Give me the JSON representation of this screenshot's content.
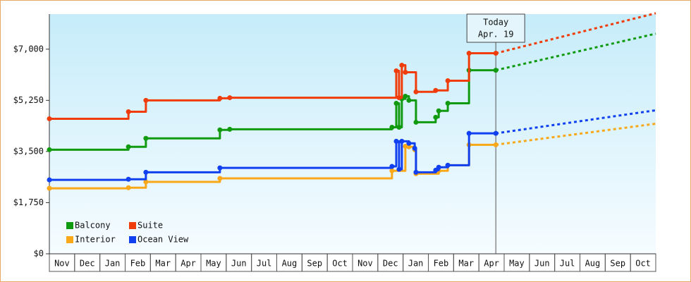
{
  "chart_data": {
    "type": "step-line",
    "xlim": [
      0,
      24
    ],
    "xticks": [
      {
        "value": 0.5,
        "label": "Nov"
      },
      {
        "value": 1.5,
        "label": "Dec"
      },
      {
        "value": 2.5,
        "label": "Jan"
      },
      {
        "value": 3.5,
        "label": "Feb"
      },
      {
        "value": 4.5,
        "label": "Mar"
      },
      {
        "value": 5.5,
        "label": "Apr"
      },
      {
        "value": 6.5,
        "label": "May"
      },
      {
        "value": 7.5,
        "label": "Jun"
      },
      {
        "value": 8.5,
        "label": "Jul"
      },
      {
        "value": 9.5,
        "label": "Aug"
      },
      {
        "value": 10.5,
        "label": "Sep"
      },
      {
        "value": 11.5,
        "label": "Oct"
      },
      {
        "value": 12.5,
        "label": "Nov"
      },
      {
        "value": 13.5,
        "label": "Dec"
      },
      {
        "value": 14.5,
        "label": "Jan"
      },
      {
        "value": 15.5,
        "label": "Feb"
      },
      {
        "value": 16.5,
        "label": "Mar"
      },
      {
        "value": 17.5,
        "label": "Apr"
      },
      {
        "value": 18.5,
        "label": "May"
      },
      {
        "value": 19.5,
        "label": "Jun"
      },
      {
        "value": 20.5,
        "label": "Jul"
      },
      {
        "value": 21.5,
        "label": "Aug"
      },
      {
        "value": 22.5,
        "label": "Sep"
      },
      {
        "value": 23.5,
        "label": "Oct"
      }
    ],
    "ylim": [
      0,
      8200
    ],
    "yticks": [
      {
        "value": 0,
        "label": "$0"
      },
      {
        "value": 1750,
        "label": "$1,750"
      },
      {
        "value": 3500,
        "label": "$3,500"
      },
      {
        "value": 5250,
        "label": "$5,250"
      },
      {
        "value": 7000,
        "label": "$7,000"
      }
    ],
    "legend": "lower left",
    "annotation": {
      "x": 17.67,
      "lines": [
        "Today",
        "Apr. 19"
      ]
    },
    "series": [
      {
        "name": "Balcony",
        "color": "#109a10",
        "x": [
          0,
          3.13,
          3.82,
          6.75,
          7.14,
          13.56,
          13.73,
          13.84,
          13.95,
          14.09,
          14.23,
          14.51,
          15.29,
          15.41,
          15.77,
          16.61,
          17.67
        ],
        "values": [
          3560,
          3660,
          3950,
          4240,
          4260,
          4330,
          5150,
          4330,
          5300,
          5390,
          5250,
          4500,
          4670,
          4890,
          5150,
          6280,
          6280
        ],
        "forecast_x": [
          17.67,
          24
        ],
        "forecast_values": [
          6280,
          7530
        ]
      },
      {
        "name": "Suite",
        "color": "#f03c0a",
        "x": [
          0,
          3.13,
          3.82,
          6.75,
          7.14,
          13.73,
          13.84,
          13.95,
          14.09,
          14.51,
          15.29,
          15.77,
          16.61,
          17.67
        ],
        "values": [
          4620,
          4860,
          5250,
          5320,
          5340,
          6260,
          5340,
          6450,
          6210,
          5540,
          5590,
          5920,
          6860,
          6860
        ],
        "forecast_x": [
          17.67,
          24
        ],
        "forecast_values": [
          6860,
          8230
        ]
      },
      {
        "name": "Interior",
        "color": "#f8a818",
        "x": [
          0,
          3.13,
          3.82,
          6.75,
          13.56,
          14.09,
          14.23,
          14.46,
          14.51,
          15.41,
          15.77,
          16.61,
          17.67
        ],
        "values": [
          2240,
          2260,
          2460,
          2580,
          2840,
          3680,
          3660,
          3560,
          2740,
          2840,
          3030,
          3730,
          3730
        ],
        "forecast_x": [
          17.67,
          24
        ],
        "forecast_values": [
          3730,
          4450
        ]
      },
      {
        "name": "Ocean View",
        "color": "#1040f0",
        "x": [
          0,
          3.13,
          3.82,
          6.75,
          13.56,
          13.73,
          13.84,
          13.95,
          14.23,
          14.46,
          14.51,
          15.29,
          15.41,
          15.77,
          16.61,
          17.67
        ],
        "values": [
          2530,
          2550,
          2790,
          2940,
          2990,
          3850,
          2890,
          3850,
          3780,
          3610,
          2790,
          2860,
          2960,
          3030,
          4120,
          4120
        ],
        "forecast_x": [
          17.67,
          24
        ],
        "forecast_values": [
          4120,
          4910
        ]
      }
    ]
  }
}
